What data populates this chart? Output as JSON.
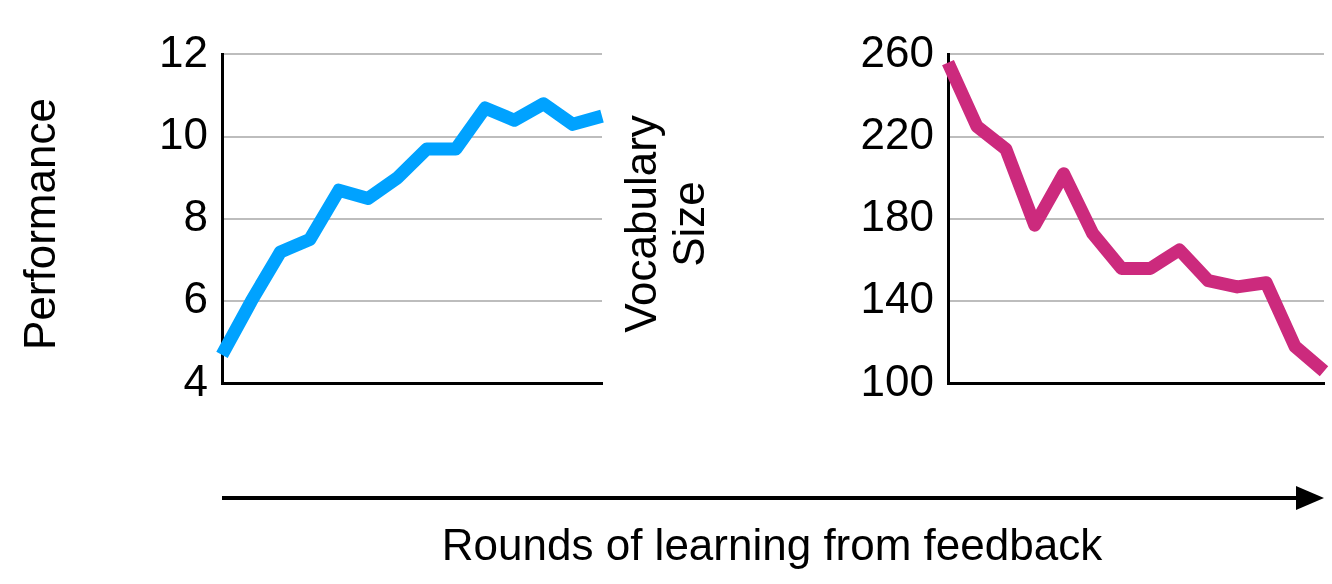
{
  "chart_data": [
    {
      "type": "line",
      "ylabel": "Performance",
      "xlabel": "Rounds of learning from feedback",
      "categories": [
        null,
        null,
        null,
        null,
        null,
        null,
        null,
        null,
        null,
        null,
        null,
        null,
        null,
        null
      ],
      "series": [
        {
          "color": "#00a2ff",
          "values": [
            4.7,
            6.0,
            7.2,
            7.5,
            8.7,
            8.5,
            9.0,
            9.7,
            9.7,
            10.7,
            10.4,
            10.8,
            10.3,
            10.5
          ]
        }
      ],
      "ylim": [
        4,
        12
      ],
      "yticks": [
        4,
        6,
        8,
        10,
        12
      ],
      "grid": "y",
      "tick_labels": "y",
      "marker": "none"
    },
    {
      "type": "line",
      "ylabel": "Vocabulary Size",
      "categories": [
        null,
        null,
        null,
        null,
        null,
        null,
        null,
        null,
        null,
        null,
        null,
        null,
        null,
        null
      ],
      "series": [
        {
          "color": "#cc2a7d",
          "values": [
            256,
            225,
            214,
            177,
            202,
            173,
            156,
            156,
            165,
            150,
            147,
            149,
            118,
            106
          ]
        }
      ],
      "ylim": [
        100,
        260
      ],
      "yticks": [
        100,
        140,
        180,
        220,
        260
      ],
      "grid": "y",
      "tick_labels": "y",
      "marker": "none"
    }
  ]
}
